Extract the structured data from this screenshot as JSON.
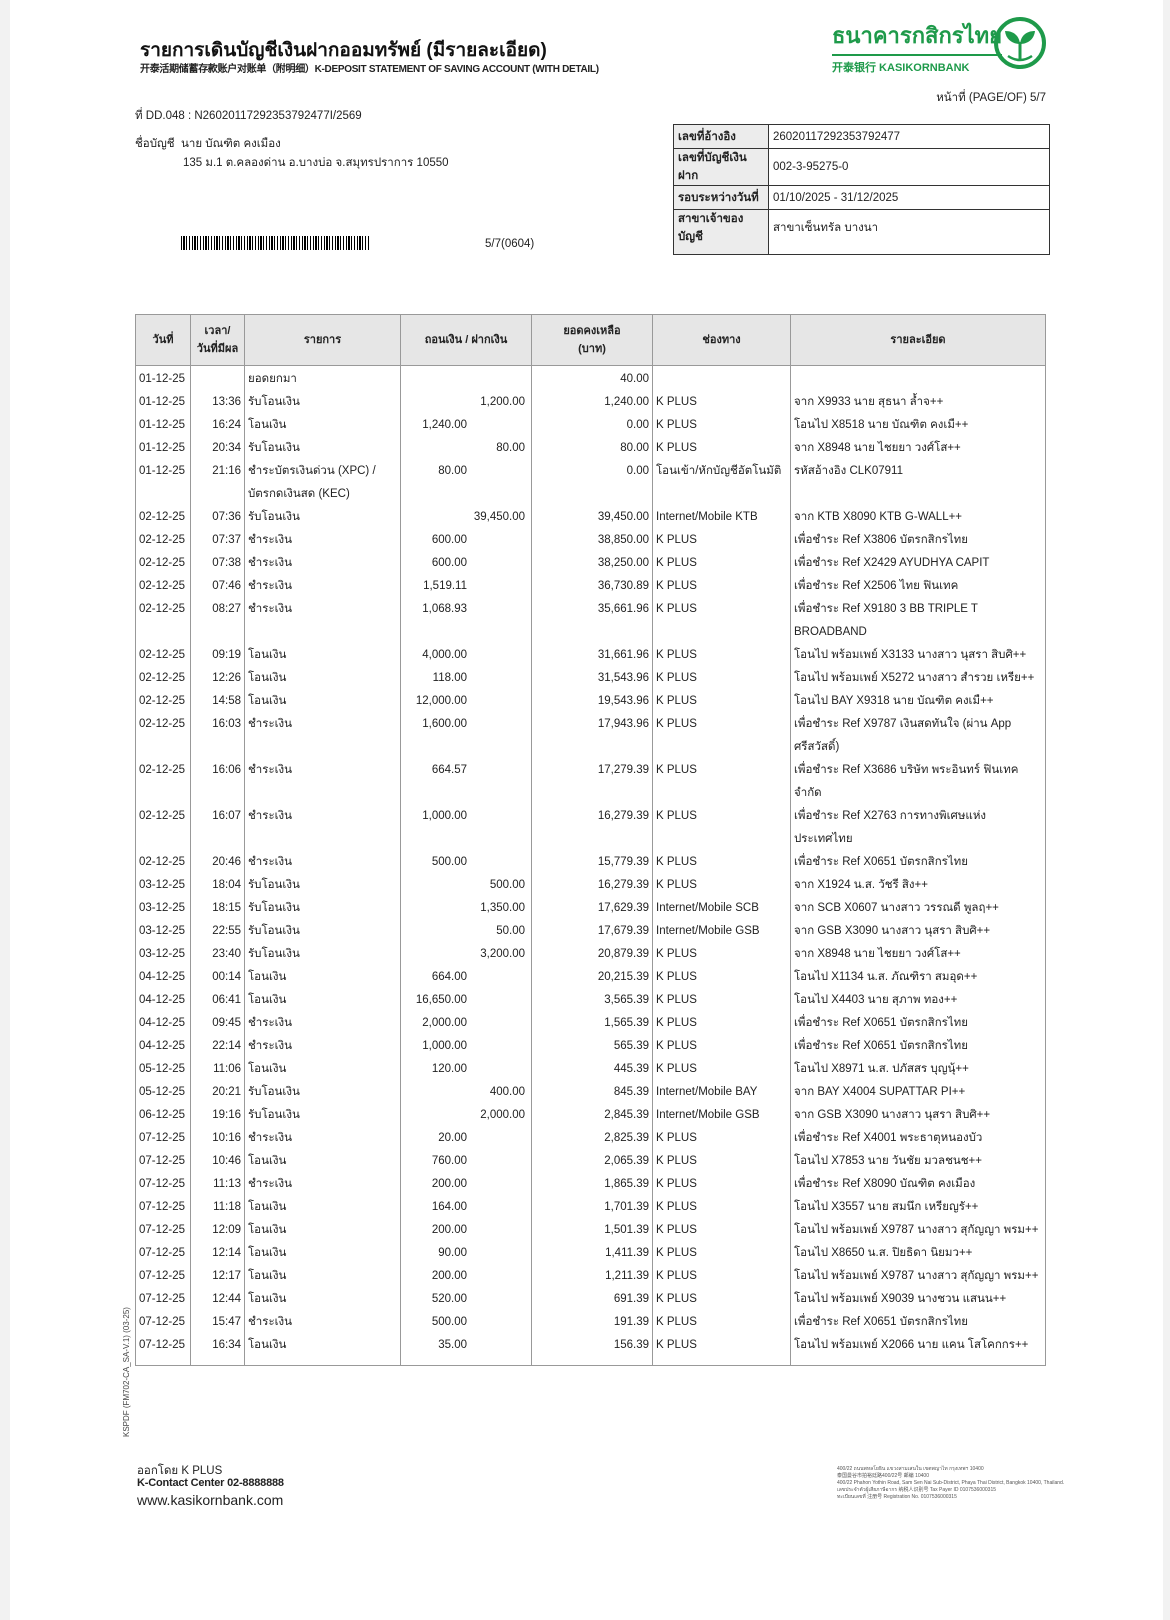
{
  "header": {
    "title": "รายการเดินบัญชีเงินฝากออมทรัพย์ (มีรายละเอียด)",
    "subtitle": "开泰活期储蓄存款账户对账单（附明细）K-DEPOSIT STATEMENT OF SAVING ACCOUNT (WITH DETAIL)",
    "logo_th": "ธนาคารกสิกรไทย",
    "logo_en": "开泰银行 KASIKORNBANK",
    "brand_color": "#1e9a4a",
    "page_label": "หน้าที่ (PAGE/OF)",
    "page_value": "5/7"
  },
  "doc": {
    "ref_line": "ที่ DD.048 : N26020117292353792477I/2569",
    "account_name_label": "ชื่อบัญชี",
    "account_name": "นาย บัณฑิต คงเมือง",
    "address": "135 ม.1 ต.คลองด่าน อ.บางบ่อ จ.สมุทรปราการ 10550",
    "barcode_code": "5/7(0604)"
  },
  "info": [
    {
      "label": "เลขที่อ้างอิง",
      "value": "26020117292353792477"
    },
    {
      "label": "เลขที่บัญชีเงินฝาก",
      "value": "002-3-95275-0"
    },
    {
      "label": "รอบระหว่างวันที่",
      "value": "01/10/2025 - 31/12/2025"
    },
    {
      "label": "สาขาเจ้าของบัญชี",
      "value": "สาขาเซ็นทรัล บางนา"
    }
  ],
  "table": {
    "headers": {
      "date": "วันที่",
      "time_1": "เวลา/",
      "time_2": "วันที่มีผล",
      "type": "รายการ",
      "amount": "ถอนเงิน / ฝากเงิน",
      "balance_1": "ยอดคงเหลือ",
      "balance_2": "(บาท)",
      "channel": "ช่องทาง",
      "detail": "รายละเอียด"
    },
    "rows": [
      {
        "date": "01-12-25",
        "time": "",
        "type": "ยอดยกมา",
        "amount": "",
        "kind": "",
        "balance": "40.00",
        "channel": "",
        "detail": ""
      },
      {
        "date": "01-12-25",
        "time": "13:36",
        "type": "รับโอนเงิน",
        "amount": "1,200.00",
        "kind": "d",
        "balance": "1,240.00",
        "channel": "K PLUS",
        "detail": "จาก X9933 นาย สุธนา ล้ำจ++"
      },
      {
        "date": "01-12-25",
        "time": "16:24",
        "type": "โอนเงิน",
        "amount": "1,240.00",
        "kind": "w",
        "balance": "0.00",
        "channel": "K PLUS",
        "detail": "โอนไป X8518 นาย บัณฑิต คงเมื++"
      },
      {
        "date": "01-12-25",
        "time": "20:34",
        "type": "รับโอนเงิน",
        "amount": "80.00",
        "kind": "d",
        "balance": "80.00",
        "channel": "K PLUS",
        "detail": "จาก X8948 นาย ไชยยา วงศ์โส++"
      },
      {
        "date": "01-12-25",
        "time": "21:16",
        "type": "ชำระบัตรเงินด่วน (XPC) / บัตรกดเงินสด (KEC)",
        "amount": "80.00",
        "kind": "w",
        "balance": "0.00",
        "channel": "โอนเข้า/หักบัญชีอัตโนมัติ",
        "detail": "รหัสอ้างอิง CLK07911"
      },
      {
        "date": "02-12-25",
        "time": "07:36",
        "type": "รับโอนเงิน",
        "amount": "39,450.00",
        "kind": "d",
        "balance": "39,450.00",
        "channel": "Internet/Mobile KTB",
        "detail": "จาก KTB X8090 KTB G-WALL++"
      },
      {
        "date": "02-12-25",
        "time": "07:37",
        "type": "ชำระเงิน",
        "amount": "600.00",
        "kind": "w",
        "balance": "38,850.00",
        "channel": "K PLUS",
        "detail": "เพื่อชำระ Ref X3806 บัตรกสิกรไทย"
      },
      {
        "date": "02-12-25",
        "time": "07:38",
        "type": "ชำระเงิน",
        "amount": "600.00",
        "kind": "w",
        "balance": "38,250.00",
        "channel": "K PLUS",
        "detail": "เพื่อชำระ Ref X2429 AYUDHYA CAPIT"
      },
      {
        "date": "02-12-25",
        "time": "07:46",
        "type": "ชำระเงิน",
        "amount": "1,519.11",
        "kind": "w",
        "balance": "36,730.89",
        "channel": "K PLUS",
        "detail": "เพื่อชำระ Ref X2506 ไทย ฟินเทค"
      },
      {
        "date": "02-12-25",
        "time": "08:27",
        "type": "ชำระเงิน",
        "amount": "1,068.93",
        "kind": "w",
        "balance": "35,661.96",
        "channel": "K PLUS",
        "detail": "เพื่อชำระ Ref X9180 3 BB TRIPLE T BROADBAND"
      },
      {
        "date": "02-12-25",
        "time": "09:19",
        "type": "โอนเงิน",
        "amount": "4,000.00",
        "kind": "w",
        "balance": "31,661.96",
        "channel": "K PLUS",
        "detail": "โอนไป พร้อมเพย์ X3133 นางสาว นุสรา สิบศิ++"
      },
      {
        "date": "02-12-25",
        "time": "12:26",
        "type": "โอนเงิน",
        "amount": "118.00",
        "kind": "w",
        "balance": "31,543.96",
        "channel": "K PLUS",
        "detail": "โอนไป พร้อมเพย์ X5272 นางสาว สำรวย เหรีย++"
      },
      {
        "date": "02-12-25",
        "time": "14:58",
        "type": "โอนเงิน",
        "amount": "12,000.00",
        "kind": "w",
        "balance": "19,543.96",
        "channel": "K PLUS",
        "detail": "โอนไป BAY X9318 นาย บัณฑิต คงเมื++"
      },
      {
        "date": "02-12-25",
        "time": "16:03",
        "type": "ชำระเงิน",
        "amount": "1,600.00",
        "kind": "w",
        "balance": "17,943.96",
        "channel": "K PLUS",
        "detail": "เพื่อชำระ Ref X9787 เงินสดทันใจ (ผ่าน App ศรีสวัสดิ์)"
      },
      {
        "date": "02-12-25",
        "time": "16:06",
        "type": "ชำระเงิน",
        "amount": "664.57",
        "kind": "w",
        "balance": "17,279.39",
        "channel": "K PLUS",
        "detail": "เพื่อชำระ Ref X3686 บริษัท พระอินทร์ ฟินเทค จำกัด"
      },
      {
        "date": "02-12-25",
        "time": "16:07",
        "type": "ชำระเงิน",
        "amount": "1,000.00",
        "kind": "w",
        "balance": "16,279.39",
        "channel": "K PLUS",
        "detail": "เพื่อชำระ Ref X2763 การทางพิเศษแห่งประเทศไทย"
      },
      {
        "date": "02-12-25",
        "time": "20:46",
        "type": "ชำระเงิน",
        "amount": "500.00",
        "kind": "w",
        "balance": "15,779.39",
        "channel": "K PLUS",
        "detail": "เพื่อชำระ Ref X0651 บัตรกสิกรไทย"
      },
      {
        "date": "03-12-25",
        "time": "18:04",
        "type": "รับโอนเงิน",
        "amount": "500.00",
        "kind": "d",
        "balance": "16,279.39",
        "channel": "K PLUS",
        "detail": "จาก X1924 น.ส. วัชรี สิง++"
      },
      {
        "date": "03-12-25",
        "time": "18:15",
        "type": "รับโอนเงิน",
        "amount": "1,350.00",
        "kind": "d",
        "balance": "17,629.39",
        "channel": "Internet/Mobile SCB",
        "detail": "จาก SCB X0607 นางสาว วรรณดี พูลฤ++"
      },
      {
        "date": "03-12-25",
        "time": "22:55",
        "type": "รับโอนเงิน",
        "amount": "50.00",
        "kind": "d",
        "balance": "17,679.39",
        "channel": "Internet/Mobile GSB",
        "detail": "จาก GSB X3090 นางสาว นุสรา สิบศิ++"
      },
      {
        "date": "03-12-25",
        "time": "23:40",
        "type": "รับโอนเงิน",
        "amount": "3,200.00",
        "kind": "d",
        "balance": "20,879.39",
        "channel": "K PLUS",
        "detail": "จาก X8948 นาย ไชยยา วงศ์โส++"
      },
      {
        "date": "04-12-25",
        "time": "00:14",
        "type": "โอนเงิน",
        "amount": "664.00",
        "kind": "w",
        "balance": "20,215.39",
        "channel": "K PLUS",
        "detail": "โอนไป X1134 น.ส. ภัณฑิรา สมอุด++"
      },
      {
        "date": "04-12-25",
        "time": "06:41",
        "type": "โอนเงิน",
        "amount": "16,650.00",
        "kind": "w",
        "balance": "3,565.39",
        "channel": "K PLUS",
        "detail": "โอนไป X4403 นาย สุภาพ ทอง++"
      },
      {
        "date": "04-12-25",
        "time": "09:45",
        "type": "ชำระเงิน",
        "amount": "2,000.00",
        "kind": "w",
        "balance": "1,565.39",
        "channel": "K PLUS",
        "detail": "เพื่อชำระ Ref X0651 บัตรกสิกรไทย"
      },
      {
        "date": "04-12-25",
        "time": "22:14",
        "type": "ชำระเงิน",
        "amount": "1,000.00",
        "kind": "w",
        "balance": "565.39",
        "channel": "K PLUS",
        "detail": "เพื่อชำระ Ref X0651 บัตรกสิกรไทย"
      },
      {
        "date": "05-12-25",
        "time": "11:06",
        "type": "โอนเงิน",
        "amount": "120.00",
        "kind": "w",
        "balance": "445.39",
        "channel": "K PLUS",
        "detail": "โอนไป X8971 น.ส. ปภัสสร บุญนุ้++"
      },
      {
        "date": "05-12-25",
        "time": "20:21",
        "type": "รับโอนเงิน",
        "amount": "400.00",
        "kind": "d",
        "balance": "845.39",
        "channel": "Internet/Mobile BAY",
        "detail": "จาก BAY X4004 SUPATTAR PI++"
      },
      {
        "date": "06-12-25",
        "time": "19:16",
        "type": "รับโอนเงิน",
        "amount": "2,000.00",
        "kind": "d",
        "balance": "2,845.39",
        "channel": "Internet/Mobile GSB",
        "detail": "จาก GSB X3090 นางสาว นุสรา สิบศิ++"
      },
      {
        "date": "07-12-25",
        "time": "10:16",
        "type": "ชำระเงิน",
        "amount": "20.00",
        "kind": "w",
        "balance": "2,825.39",
        "channel": "K PLUS",
        "detail": "เพื่อชำระ Ref X4001 พระธาตุหนองบัว"
      },
      {
        "date": "07-12-25",
        "time": "10:46",
        "type": "โอนเงิน",
        "amount": "760.00",
        "kind": "w",
        "balance": "2,065.39",
        "channel": "K PLUS",
        "detail": "โอนไป X7853 นาย วันชัย มวลชนช++"
      },
      {
        "date": "07-12-25",
        "time": "11:13",
        "type": "ชำระเงิน",
        "amount": "200.00",
        "kind": "w",
        "balance": "1,865.39",
        "channel": "K PLUS",
        "detail": "เพื่อชำระ Ref X8090 บัณฑิต คงเมือง"
      },
      {
        "date": "07-12-25",
        "time": "11:18",
        "type": "โอนเงิน",
        "amount": "164.00",
        "kind": "w",
        "balance": "1,701.39",
        "channel": "K PLUS",
        "detail": "โอนไป X3557 นาย สมนึก เหรียญรั++"
      },
      {
        "date": "07-12-25",
        "time": "12:09",
        "type": "โอนเงิน",
        "amount": "200.00",
        "kind": "w",
        "balance": "1,501.39",
        "channel": "K PLUS",
        "detail": "โอนไป พร้อมเพย์ X9787 นางสาว สุกัญญา พรม++"
      },
      {
        "date": "07-12-25",
        "time": "12:14",
        "type": "โอนเงิน",
        "amount": "90.00",
        "kind": "w",
        "balance": "1,411.39",
        "channel": "K PLUS",
        "detail": "โอนไป X8650 น.ส. ปิยธิดา นิยมว++"
      },
      {
        "date": "07-12-25",
        "time": "12:17",
        "type": "โอนเงิน",
        "amount": "200.00",
        "kind": "w",
        "balance": "1,211.39",
        "channel": "K PLUS",
        "detail": "โอนไป พร้อมเพย์ X9787 นางสาว สุกัญญา พรม++"
      },
      {
        "date": "07-12-25",
        "time": "12:44",
        "type": "โอนเงิน",
        "amount": "520.00",
        "kind": "w",
        "balance": "691.39",
        "channel": "K PLUS",
        "detail": "โอนไป พร้อมเพย์ X9039 นางชวน แสนน++"
      },
      {
        "date": "07-12-25",
        "time": "15:47",
        "type": "ชำระเงิน",
        "amount": "500.00",
        "kind": "w",
        "balance": "191.39",
        "channel": "K PLUS",
        "detail": "เพื่อชำระ Ref X0651 บัตรกสิกรไทย"
      },
      {
        "date": "07-12-25",
        "time": "16:34",
        "type": "โอนเงิน",
        "amount": "35.00",
        "kind": "w",
        "balance": "156.39",
        "channel": "K PLUS",
        "detail": "โอนไป พร้อมเพย์ X2066 นาย แคน โสโคกกร++"
      }
    ]
  },
  "side_code": "KSPDF (FM702-CA_SA-V.1) (03-25)",
  "footer": {
    "issued_by": "ออกโดย K PLUS",
    "contact": "K-Contact Center 02-8888888",
    "website": "www.kasikornbank.com",
    "address_lines": [
      "400/22 ถนนพหลโยธิน แขวงสามเสนใน เขตพญาไท กรุงเทพฯ 10400",
      "泰国曼谷市拍裕廷路400/22号 邮编 10400",
      "400/22 Phahon Yothin Road, Sam Sen Nai Sub-District, Phaya Thai District, Bangkok 10400, Thailand.",
      "เลขประจำตัวผู้เสียภาษีอากร 纳税人识别号 Tax Payer ID 0107536000315",
      "ทะเบียนเลขที่ 注册号 Registration No. 0107536000315"
    ]
  }
}
